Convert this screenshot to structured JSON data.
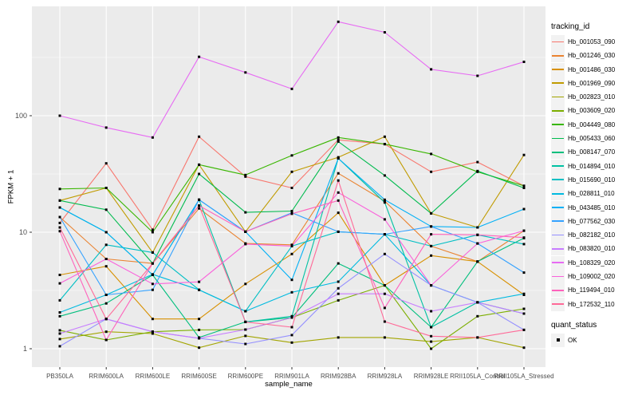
{
  "chart_data": {
    "type": "line",
    "title": "",
    "xlabel": "sample_name",
    "ylabel": "FPKM + 1",
    "yscale": "log10",
    "ylim": [
      1,
      700
    ],
    "yticks": [
      1,
      10,
      100
    ],
    "ytick_labels": [
      "1",
      "10",
      "100"
    ],
    "minor_gridlines": [
      3.162,
      31.62,
      316.2
    ],
    "grid": "white on gray panel",
    "legend_position": "right",
    "marker": "black square",
    "categories": [
      "PB350LA",
      "RRIM600LA",
      "RRIM600LE",
      "RRIM600SE",
      "RRIM600PE",
      "RRIM901LA",
      "RRIM928BA",
      "RRIM928LA",
      "RRIM928LE",
      "RRII105LA_Control",
      "RRII105LA_Stressed"
    ],
    "series": [
      {
        "name": "Hb_001053_090",
        "color": "#F8766D",
        "values": [
          12,
          39,
          10.5,
          66,
          30,
          24,
          62,
          57,
          33,
          40,
          25
        ]
      },
      {
        "name": "Hb_001246_030",
        "color": "#EA8331",
        "values": [
          13.5,
          5.9,
          5.4,
          16,
          8,
          7.8,
          32,
          18.5,
          7.6,
          5.6,
          10.3
        ]
      },
      {
        "name": "Hb_001486_030",
        "color": "#D89000",
        "values": [
          4.3,
          5.1,
          1.8,
          1.8,
          3.6,
          6.5,
          14.7,
          3.5,
          6.3,
          5.6,
          2.9
        ]
      },
      {
        "name": "Hb_001969_090",
        "color": "#C09B00",
        "values": [
          18.7,
          24,
          6.7,
          38,
          10.1,
          33,
          44,
          66,
          14.5,
          11,
          46
        ]
      },
      {
        "name": "Hb_002823_010",
        "color": "#A3A500",
        "values": [
          1.21,
          1.4,
          1.35,
          1.02,
          1.29,
          1.13,
          1.25,
          1.25,
          1.15,
          1.25,
          1.02
        ]
      },
      {
        "name": "Hb_003609_020",
        "color": "#7CAE00",
        "values": [
          1.44,
          1.19,
          1.4,
          1.45,
          1.46,
          1.85,
          2.6,
          3.5,
          1.0,
          1.9,
          2.2
        ]
      },
      {
        "name": "Hb_004449_080",
        "color": "#39B600",
        "values": [
          23.5,
          24,
          10,
          38,
          31,
          45.6,
          65,
          57,
          47,
          33,
          25
        ]
      },
      {
        "name": "Hb_005433_060",
        "color": "#00BB4E",
        "values": [
          18.7,
          15.6,
          5.4,
          31.6,
          14.8,
          15.2,
          60,
          30.7,
          14.5,
          33.5,
          24
        ]
      },
      {
        "name": "Hb_008147_070",
        "color": "#00BF7D",
        "values": [
          1.9,
          2.45,
          4.3,
          1.25,
          1.7,
          1.85,
          5.4,
          3.5,
          1.53,
          5.6,
          8.9
        ]
      },
      {
        "name": "Hb_014894_010",
        "color": "#00C1A3",
        "values": [
          16.3,
          10,
          4.3,
          19,
          1.7,
          1.9,
          43,
          18,
          1.53,
          2.5,
          2.0
        ]
      },
      {
        "name": "Hb_015690_010",
        "color": "#00BFC4",
        "values": [
          2.6,
          7.8,
          6.7,
          3.2,
          2.1,
          7.6,
          10.1,
          9.6,
          7.6,
          9.5,
          7.9
        ]
      },
      {
        "name": "Hb_028811_010",
        "color": "#00BAE0",
        "values": [
          2.05,
          2.9,
          4.35,
          3.2,
          2.1,
          3.05,
          3.76,
          9.6,
          3.5,
          2.5,
          2.96
        ]
      },
      {
        "name": "Hb_043485_010",
        "color": "#00B0F6",
        "values": [
          16.3,
          10,
          4.3,
          19,
          10.1,
          3.9,
          43,
          19,
          11.2,
          11,
          15.8
        ]
      },
      {
        "name": "Hb_077562_030",
        "color": "#35A2FF",
        "values": [
          13.5,
          2.9,
          3.2,
          19,
          10.1,
          14.7,
          10.1,
          9.6,
          11.2,
          8,
          4.5
        ]
      },
      {
        "name": "Hb_082182_010",
        "color": "#9590FF",
        "values": [
          1.05,
          1.8,
          1.4,
          1.23,
          1.1,
          1.31,
          3.3,
          6.5,
          3.5,
          2.5,
          1.45
        ]
      },
      {
        "name": "Hb_083820_010",
        "color": "#C77CFF",
        "values": [
          1.35,
          1.8,
          1.4,
          1.23,
          1.46,
          1.85,
          2.96,
          2.96,
          2.1,
          2.5,
          2.0
        ]
      },
      {
        "name": "Hb_108329_020",
        "color": "#E76BF3",
        "values": [
          100,
          79,
          65,
          320,
          235,
          170,
          640,
          520,
          250,
          220,
          290
        ]
      },
      {
        "name": "Hb_109002_020",
        "color": "#FA62DB",
        "values": [
          3.64,
          5.9,
          3.6,
          3.75,
          7.9,
          7.6,
          21.9,
          12.9,
          3.5,
          8,
          10.3
        ]
      },
      {
        "name": "Hb_119494_010",
        "color": "#FF62BC",
        "values": [
          10.2,
          1.19,
          5.4,
          16.9,
          10.1,
          14.4,
          18.7,
          2.24,
          9.6,
          9.5,
          9
        ]
      },
      {
        "name": "Hb_172532_110",
        "color": "#FF6A98",
        "values": [
          11,
          1.8,
          5.4,
          16.9,
          1.7,
          1.53,
          27.8,
          1.71,
          1.28,
          1.25,
          1.45
        ]
      }
    ]
  },
  "legend": {
    "tracking_title": "tracking_id",
    "quant_title": "quant_status",
    "quant_items": [
      {
        "label": "OK"
      }
    ]
  },
  "colors": {
    "panel_bg": "#EBEBEB",
    "gridline": "#FFFFFF",
    "axis_text": "#4D4D4D",
    "tick_mark": "#333333",
    "marker": "#000000",
    "legend_key_bg": "#F2F2F2"
  }
}
